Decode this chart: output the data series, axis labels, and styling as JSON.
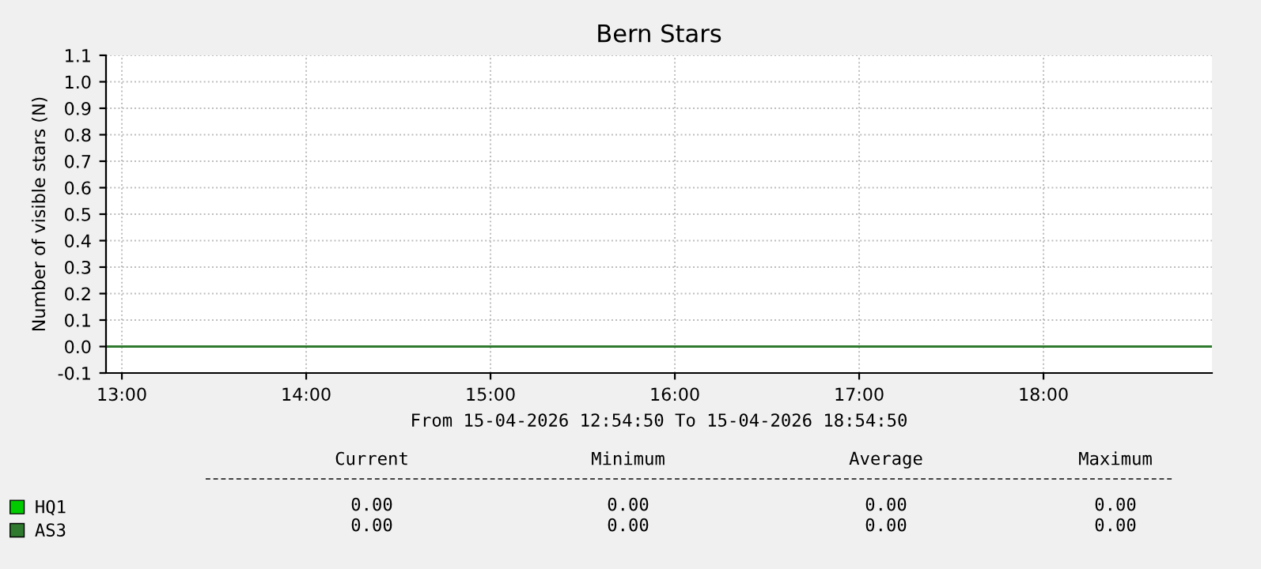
{
  "chart_data": {
    "type": "line",
    "title": "Bern Stars",
    "ylabel": "Number of visible stars (N)",
    "xlabel": "From 15-04-2026 12:54:50 To 15-04-2026 18:54:50",
    "x": [
      12.9139,
      18.9139
    ],
    "series": [
      {
        "name": "HQ1",
        "color": "#00cc00",
        "values": [
          null,
          null
        ]
      },
      {
        "name": "AS3",
        "color": "#2f7a2f",
        "values": [
          0,
          0
        ]
      }
    ],
    "xlim": [
      12.9139,
      18.9139
    ],
    "xticks": [
      {
        "value": 13,
        "label": "13:00"
      },
      {
        "value": 14,
        "label": "14:00"
      },
      {
        "value": 15,
        "label": "15:00"
      },
      {
        "value": 16,
        "label": "16:00"
      },
      {
        "value": 17,
        "label": "17:00"
      },
      {
        "value": 18,
        "label": "18:00"
      }
    ],
    "ylim": [
      -0.1,
      1.1
    ],
    "yticks": [
      -0.1,
      {
        "value": 0,
        "label": "0.0"
      },
      0.1,
      0.2,
      0.3,
      0.4,
      0.5,
      0.6,
      0.7,
      0.8,
      0.9,
      {
        "value": 1,
        "label": "1.0"
      },
      1.1
    ],
    "grid": true,
    "legend": "bottom left",
    "marker": "none",
    "line_style": "solid",
    "annotations": [
      "Current",
      "Minimum",
      "Average",
      "Maximum",
      "0.00",
      "0.00",
      "0.00",
      "0.00",
      "0.00",
      "0.00",
      "0.00",
      "0.00"
    ]
  }
}
